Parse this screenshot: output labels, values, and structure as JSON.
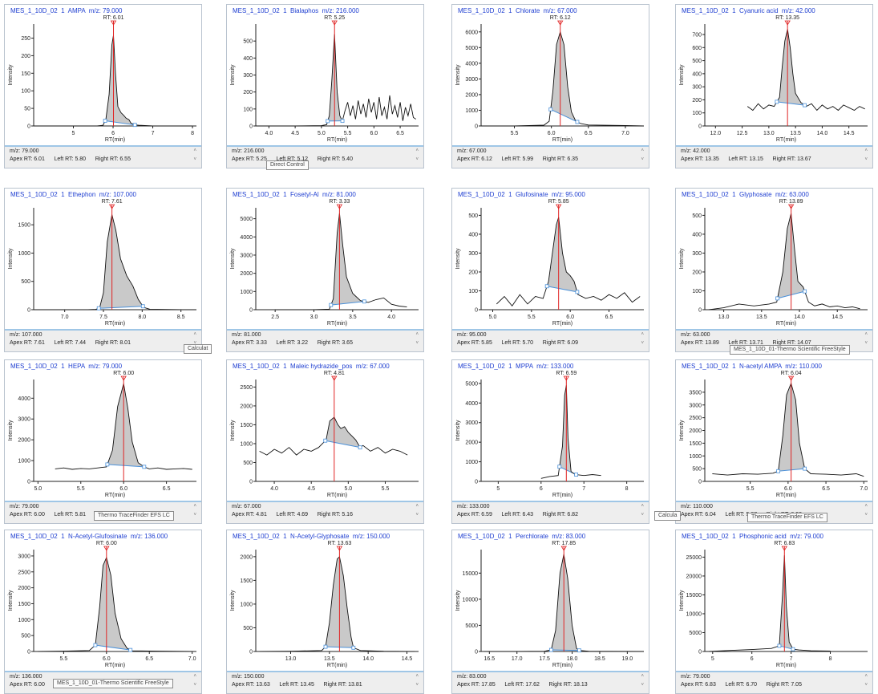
{
  "chart_data": [
    {
      "type": "line",
      "title": "MES_1_10D_02  1  AMPA  m/z: 79.000",
      "xlabel": "RT(min)",
      "ylabel": "Intensity",
      "xlim": [
        4.0,
        8.1
      ],
      "ylim": [
        0,
        290
      ],
      "xticks": [
        "5",
        "6",
        "7",
        "8"
      ],
      "yticks": [
        "0",
        "50",
        "100",
        "150",
        "200",
        "250"
      ],
      "apex_label": "RT: 6.01",
      "x": [
        4.0,
        5.0,
        5.6,
        5.75,
        5.82,
        5.9,
        5.97,
        6.01,
        6.06,
        6.12,
        6.2,
        6.27,
        6.33,
        6.4,
        6.45,
        6.55,
        6.65,
        7.0,
        8.0
      ],
      "y": [
        0,
        0,
        0,
        2,
        20,
        90,
        230,
        258,
        150,
        55,
        38,
        30,
        22,
        18,
        8,
        3,
        2,
        0,
        0
      ],
      "apex_rt": "6.01",
      "left_rt": "5.80",
      "right_rt": "6.55",
      "mz": "79.000"
    },
    {
      "type": "line",
      "title": "MES_1_10D_02  1  Bialaphos  m/z: 216.000",
      "xlabel": "RT(min)",
      "ylabel": "Intensity",
      "xlim": [
        3.75,
        6.85
      ],
      "ylim": [
        0,
        600
      ],
      "xticks": [
        "4.0",
        "4.5",
        "5.0",
        "5.5",
        "6.0",
        "6.5"
      ],
      "yticks": [
        "0",
        "100",
        "200",
        "300",
        "400",
        "500"
      ],
      "apex_label": "RT: 5.25",
      "x": [
        3.75,
        4.5,
        5.0,
        5.1,
        5.15,
        5.2,
        5.25,
        5.3,
        5.35,
        5.4,
        5.45,
        5.5,
        5.55,
        5.6,
        5.65,
        5.7,
        5.75,
        5.8,
        5.85,
        5.9,
        5.95,
        6.0,
        6.05,
        6.1,
        6.15,
        6.2,
        6.25,
        6.3,
        6.35,
        6.4,
        6.45,
        6.5,
        6.55,
        6.6,
        6.65,
        6.7,
        6.75,
        6.8
      ],
      "y": [
        0,
        0,
        2,
        8,
        60,
        280,
        540,
        200,
        60,
        30,
        90,
        140,
        60,
        120,
        40,
        150,
        70,
        130,
        50,
        160,
        80,
        140,
        40,
        170,
        60,
        110,
        40,
        180,
        70,
        120,
        50,
        140,
        30,
        110,
        60,
        130,
        50,
        40
      ],
      "apex_rt": "5.25",
      "left_rt": "5.12",
      "right_rt": "5.40",
      "mz": "216.000"
    },
    {
      "type": "line",
      "title": "MES_1_10D_02  1  Chlorate  m/z: 67.000",
      "xlabel": "RT(min)",
      "ylabel": "Intensity",
      "xlim": [
        5.05,
        7.25
      ],
      "ylim": [
        0,
        6500
      ],
      "xticks": [
        "5.5",
        "6.0",
        "6.5",
        "7.0"
      ],
      "yticks": [
        "0",
        "1000",
        "2000",
        "3000",
        "4000",
        "5000",
        "6000"
      ],
      "apex_label": "RT: 6.12",
      "x": [
        5.05,
        5.5,
        5.9,
        5.97,
        6.02,
        6.07,
        6.12,
        6.17,
        6.22,
        6.27,
        6.33,
        6.4,
        6.5,
        7.0,
        7.25
      ],
      "y": [
        0,
        0,
        50,
        300,
        2200,
        5200,
        6000,
        5200,
        2500,
        900,
        300,
        150,
        60,
        30,
        0
      ],
      "apex_rt": "6.12",
      "left_rt": "5.99",
      "right_rt": "6.35",
      "mz": "67.000"
    },
    {
      "type": "line",
      "title": "MES_1_10D_02  1  Cyanuric acid  m/z: 42.000",
      "xlabel": "RT(min)",
      "ylabel": "Intensity",
      "xlim": [
        11.8,
        14.85
      ],
      "ylim": [
        0,
        780
      ],
      "xticks": [
        "12.0",
        "12.5",
        "13.0",
        "13.5",
        "14.0",
        "14.5"
      ],
      "yticks": [
        "0",
        "100",
        "200",
        "300",
        "400",
        "500",
        "600",
        "700"
      ],
      "apex_label": "RT: 13.35",
      "x": [
        12.6,
        12.7,
        12.8,
        12.9,
        13.0,
        13.1,
        13.2,
        13.25,
        13.3,
        13.35,
        13.4,
        13.45,
        13.5,
        13.6,
        13.7,
        13.8,
        13.9,
        14.0,
        14.1,
        14.2,
        14.3,
        14.4,
        14.5,
        14.6,
        14.7,
        14.8
      ],
      "y": [
        150,
        120,
        170,
        130,
        160,
        150,
        220,
        450,
        650,
        740,
        600,
        400,
        250,
        180,
        150,
        170,
        120,
        160,
        130,
        150,
        120,
        160,
        140,
        120,
        150,
        130
      ],
      "apex_rt": "13.35",
      "left_rt": "13.15",
      "right_rt": "13.67",
      "mz": "42.000"
    },
    {
      "type": "line",
      "title": "MES_1_10D_02  1  Ethephon  m/z: 107.000",
      "xlabel": "RT(min)",
      "ylabel": "Intensity",
      "xlim": [
        6.6,
        8.7
      ],
      "ylim": [
        0,
        1800
      ],
      "xticks": [
        "7.0",
        "7.5",
        "8.0",
        "8.5"
      ],
      "yticks": [
        "0",
        "500",
        "1000",
        "1500"
      ],
      "apex_label": "RT: 7.61",
      "x": [
        6.6,
        7.3,
        7.4,
        7.45,
        7.5,
        7.55,
        7.61,
        7.66,
        7.72,
        7.8,
        7.88,
        7.95,
        8.02,
        8.1,
        8.5,
        8.7
      ],
      "y": [
        0,
        0,
        5,
        30,
        300,
        1200,
        1680,
        1400,
        900,
        600,
        420,
        180,
        40,
        8,
        0,
        0
      ],
      "apex_rt": "7.61",
      "left_rt": "7.44",
      "right_rt": "8.01",
      "mz": "107.000"
    },
    {
      "type": "line",
      "title": "MES_1_10D_02  1  Fosetyl-Al  m/z: 81.000",
      "xlabel": "RT(min)",
      "ylabel": "Intensity",
      "xlim": [
        2.25,
        4.35
      ],
      "ylim": [
        0,
        5600
      ],
      "xticks": [
        "2.5",
        "3.0",
        "3.5",
        "4.0"
      ],
      "yticks": [
        "0",
        "1000",
        "2000",
        "3000",
        "4000",
        "5000"
      ],
      "apex_label": "RT: 3.33",
      "x": [
        2.5,
        3.0,
        3.2,
        3.25,
        3.3,
        3.33,
        3.37,
        3.42,
        3.5,
        3.6,
        3.7,
        3.8,
        3.9,
        4.0,
        4.1,
        4.2
      ],
      "y": [
        0,
        0,
        30,
        600,
        4200,
        5300,
        3600,
        1800,
        900,
        500,
        400,
        550,
        650,
        300,
        200,
        150
      ],
      "apex_rt": "3.33",
      "left_rt": "3.22",
      "right_rt": "3.65",
      "mz": "81.000"
    },
    {
      "type": "line",
      "title": "MES_1_10D_02  1  Glufosinate  m/z: 95.000",
      "xlabel": "RT(min)",
      "ylabel": "Intensity",
      "xlim": [
        4.85,
        6.95
      ],
      "ylim": [
        0,
        540
      ],
      "xticks": [
        "5.0",
        "5.5",
        "6.0",
        "6.5"
      ],
      "yticks": [
        "0",
        "100",
        "200",
        "300",
        "400",
        "500"
      ],
      "apex_label": "RT: 5.85",
      "x": [
        5.05,
        5.15,
        5.25,
        5.35,
        5.45,
        5.55,
        5.65,
        5.72,
        5.78,
        5.82,
        5.85,
        5.9,
        5.95,
        6.0,
        6.05,
        6.1,
        6.2,
        6.3,
        6.4,
        6.5,
        6.6,
        6.7,
        6.8,
        6.9
      ],
      "y": [
        30,
        70,
        20,
        80,
        30,
        70,
        60,
        150,
        330,
        450,
        490,
        300,
        200,
        180,
        150,
        80,
        60,
        70,
        50,
        80,
        60,
        90,
        40,
        70
      ],
      "apex_rt": "5.85",
      "left_rt": "5.70",
      "right_rt": "6.09",
      "mz": "95.000"
    },
    {
      "type": "line",
      "title": "MES_1_10D_02  1  Glyphosate  m/z: 63.000",
      "xlabel": "RT(min)",
      "ylabel": "Intensity",
      "xlim": [
        12.75,
        14.9
      ],
      "ylim": [
        0,
        540
      ],
      "xticks": [
        "13.0",
        "13.5",
        "14.0",
        "14.5"
      ],
      "yticks": [
        "0",
        "100",
        "200",
        "300",
        "400",
        "500"
      ],
      "apex_label": "RT: 13.89",
      "x": [
        12.8,
        13.0,
        13.2,
        13.4,
        13.6,
        13.7,
        13.78,
        13.84,
        13.89,
        13.94,
        13.98,
        14.05,
        14.12,
        14.2,
        14.3,
        14.4,
        14.5,
        14.6,
        14.7,
        14.8
      ],
      "y": [
        0,
        10,
        30,
        20,
        30,
        40,
        200,
        430,
        510,
        300,
        150,
        120,
        40,
        20,
        30,
        15,
        20,
        10,
        15,
        5
      ],
      "apex_rt": "13.89",
      "left_rt": "13.71",
      "right_rt": "14.07",
      "mz": "63.000"
    },
    {
      "type": "line",
      "title": "MES_1_10D_02  1  HEPA  m/z: 79.000",
      "xlabel": "RT(min)",
      "ylabel": "Intensity",
      "xlim": [
        4.95,
        6.85
      ],
      "ylim": [
        0,
        4900
      ],
      "xticks": [
        "5.0",
        "5.5",
        "6.0",
        "6.5"
      ],
      "yticks": [
        "0",
        "1000",
        "2000",
        "3000",
        "4000"
      ],
      "apex_label": "RT: 6.00",
      "x": [
        5.2,
        5.3,
        5.4,
        5.5,
        5.6,
        5.7,
        5.8,
        5.87,
        5.93,
        6.0,
        6.05,
        6.1,
        6.17,
        6.24,
        6.3,
        6.4,
        6.5,
        6.6,
        6.7,
        6.8
      ],
      "y": [
        600,
        650,
        580,
        620,
        600,
        650,
        700,
        1500,
        3600,
        4700,
        3500,
        1900,
        900,
        700,
        600,
        650,
        580,
        600,
        620,
        580
      ],
      "apex_rt": "6.00",
      "left_rt": "5.81",
      "right_rt": "6.24",
      "mz": "79.000"
    },
    {
      "type": "line",
      "title": "MES_1_10D_02  1  Maleic hydrazide_pos  m/z: 67.000",
      "xlabel": "RT(min)",
      "ylabel": "Intensity",
      "xlim": [
        3.75,
        5.95
      ],
      "ylim": [
        0,
        2700
      ],
      "xticks": [
        "4.0",
        "4.5",
        "5.0",
        "5.5"
      ],
      "yticks": [
        "0",
        "500",
        "1000",
        "1500",
        "2000",
        "2500"
      ],
      "apex_label": "RT: 4.81",
      "x": [
        3.8,
        3.9,
        4.0,
        4.1,
        4.2,
        4.3,
        4.4,
        4.5,
        4.6,
        4.7,
        4.75,
        4.81,
        4.86,
        4.9,
        4.95,
        5.0,
        5.05,
        5.1,
        5.16,
        5.2,
        5.3,
        5.4,
        5.5,
        5.6,
        5.7,
        5.8
      ],
      "y": [
        800,
        700,
        850,
        750,
        900,
        700,
        850,
        800,
        900,
        1100,
        1600,
        1700,
        1500,
        1400,
        1450,
        1300,
        1200,
        1100,
        900,
        950,
        800,
        900,
        750,
        850,
        800,
        700
      ],
      "apex_rt": "4.81",
      "left_rt": "4.69",
      "right_rt": "5.16",
      "mz": "67.000"
    },
    {
      "type": "line",
      "title": "MES_1_10D_02  1  MPPA  m/z: 133.000",
      "xlabel": "RT(min)",
      "ylabel": "Intensity",
      "xlim": [
        4.6,
        8.4
      ],
      "ylim": [
        0,
        5200
      ],
      "xticks": [
        "5",
        "6",
        "7",
        "8"
      ],
      "yticks": [
        "0",
        "1000",
        "2000",
        "3000",
        "4000",
        "5000"
      ],
      "apex_label": "RT: 6.59",
      "x": [
        6.0,
        6.2,
        6.4,
        6.5,
        6.55,
        6.59,
        6.63,
        6.7,
        6.8,
        7.0,
        7.2,
        7.4
      ],
      "y": [
        150,
        250,
        300,
        1800,
        4400,
        4900,
        2200,
        500,
        350,
        300,
        350,
        300
      ],
      "apex_rt": "6.59",
      "left_rt": "6.43",
      "right_rt": "6.82",
      "mz": "133.000"
    },
    {
      "type": "line",
      "title": "MES_1_10D_02  1  N-acetyl AMPA  m/z: 110.000",
      "xlabel": "RT(min)",
      "ylabel": "Intensity",
      "xlim": [
        4.9,
        7.05
      ],
      "ylim": [
        0,
        4000
      ],
      "xticks": [
        "5.5",
        "6.0",
        "6.5",
        "7.0"
      ],
      "yticks": [
        "0",
        "500",
        "1000",
        "1500",
        "2000",
        "2500",
        "3000",
        "3500"
      ],
      "apex_label": "RT: 6.04",
      "x": [
        5.0,
        5.2,
        5.4,
        5.6,
        5.8,
        5.87,
        5.93,
        5.98,
        6.04,
        6.1,
        6.15,
        6.22,
        6.3,
        6.5,
        6.7,
        6.9,
        7.0
      ],
      "y": [
        300,
        250,
        300,
        280,
        320,
        400,
        1800,
        3400,
        3850,
        3200,
        1500,
        500,
        300,
        280,
        250,
        300,
        200
      ],
      "apex_rt": "6.04",
      "left_rt": "5.87",
      "right_rt": "6.22",
      "mz": "110.000"
    },
    {
      "type": "line",
      "title": "MES_1_10D_02  1  N-Acetyl-Glufosinate  m/z: 136.000",
      "xlabel": "RT(min)",
      "ylabel": "Intensity",
      "xlim": [
        5.15,
        7.05
      ],
      "ylim": [
        0,
        3200
      ],
      "xticks": [
        "5.5",
        "6.0",
        "6.5",
        "7.0"
      ],
      "yticks": [
        "0",
        "500",
        "1000",
        "1500",
        "2000",
        "2500",
        "3000"
      ],
      "apex_label": "RT: 6.00",
      "x": [
        5.2,
        5.5,
        5.8,
        5.87,
        5.92,
        5.96,
        6.0,
        6.05,
        6.1,
        6.17,
        6.24,
        6.3,
        6.6,
        7.0
      ],
      "y": [
        0,
        10,
        30,
        200,
        1400,
        2700,
        2950,
        2400,
        1200,
        400,
        100,
        20,
        10,
        0
      ],
      "apex_rt": "6.00",
      "left_rt": "5.87",
      "right_rt": "6.28",
      "mz": "136.000"
    },
    {
      "type": "line",
      "title": "MES_1_10D_02  1  N-Acetyl-Glyphosate  m/z: 150.000",
      "xlabel": "RT(min)",
      "ylabel": "Intensity",
      "xlim": [
        12.55,
        14.65
      ],
      "ylim": [
        0,
        2150
      ],
      "xticks": [
        "13.0",
        "13.5",
        "14.0",
        "14.5"
      ],
      "yticks": [
        "0",
        "500",
        "1000",
        "1500",
        "2000"
      ],
      "apex_label": "RT: 13.63",
      "x": [
        12.6,
        13.0,
        13.4,
        13.45,
        13.5,
        13.55,
        13.6,
        13.63,
        13.68,
        13.73,
        13.78,
        13.81,
        13.9,
        14.2,
        14.6
      ],
      "y": [
        0,
        5,
        20,
        100,
        600,
        1400,
        1950,
        2000,
        1600,
        900,
        300,
        80,
        20,
        5,
        0
      ],
      "apex_rt": "13.63",
      "left_rt": "13.45",
      "right_rt": "13.81",
      "mz": "150.000"
    },
    {
      "type": "line",
      "title": "MES_1_10D_02  1  Perchlorate  m/z: 83.000",
      "xlabel": "RT(min)",
      "ylabel": "Intensity",
      "xlim": [
        16.35,
        19.3
      ],
      "ylim": [
        0,
        19500
      ],
      "xticks": [
        "16.5",
        "17.0",
        "17.5",
        "18.0",
        "18.5",
        "19.0"
      ],
      "yticks": [
        "0",
        "5000",
        "10000",
        "15000"
      ],
      "apex_label": "RT: 17.85",
      "x": [
        16.4,
        17.0,
        17.5,
        17.62,
        17.7,
        17.78,
        17.85,
        17.92,
        18.0,
        18.08,
        18.13,
        18.3,
        19.3
      ],
      "y": [
        0,
        0,
        50,
        300,
        4000,
        15000,
        18600,
        14000,
        5000,
        600,
        200,
        50,
        0
      ],
      "apex_rt": "17.85",
      "left_rt": "17.62",
      "right_rt": "18.13",
      "mz": "83.000"
    },
    {
      "type": "line",
      "title": "MES_1_10D_02  1  Phosphonic acid  m/z: 79.000",
      "xlabel": "RT(min)",
      "ylabel": "Intensity",
      "xlim": [
        4.8,
        8.95
      ],
      "ylim": [
        0,
        27000
      ],
      "xticks": [
        "5",
        "6",
        "7",
        "8"
      ],
      "yticks": [
        "0",
        "5000",
        "10000",
        "15000",
        "20000",
        "25000"
      ],
      "apex_label": "RT: 6.83",
      "x": [
        4.9,
        5.5,
        6.0,
        6.5,
        6.7,
        6.78,
        6.83,
        6.88,
        6.95,
        7.05,
        7.2,
        7.5,
        8.0
      ],
      "y": [
        0,
        300,
        500,
        800,
        1500,
        15000,
        25500,
        12000,
        2500,
        600,
        400,
        200,
        100
      ],
      "apex_rt": "6.83",
      "left_rt": "6.70",
      "right_rt": "7.05",
      "mz": "79.000"
    }
  ],
  "labels": {
    "mz_prefix": "m/z: ",
    "apex_prefix": "Apex RT: ",
    "left_prefix": "Left RT: ",
    "right_prefix": "Right RT: "
  },
  "tooltips": [
    "Direct Control",
    "Calculat",
    "MES_1_10D_01-Thermo Scientific FreeStyle",
    "Thermo TraceFinder EFS LC",
    "Calcula",
    "Thermo TraceFinder EFS LC",
    "MES_1_10D_01-Thermo Scientific FreeStyle"
  ],
  "colors": {
    "title": "#1f3fd1",
    "peak_fill": "#c9c9c9",
    "apex_line": "#e02424",
    "baseline": "#4a90d9",
    "info_border": "#9fc6e6"
  }
}
